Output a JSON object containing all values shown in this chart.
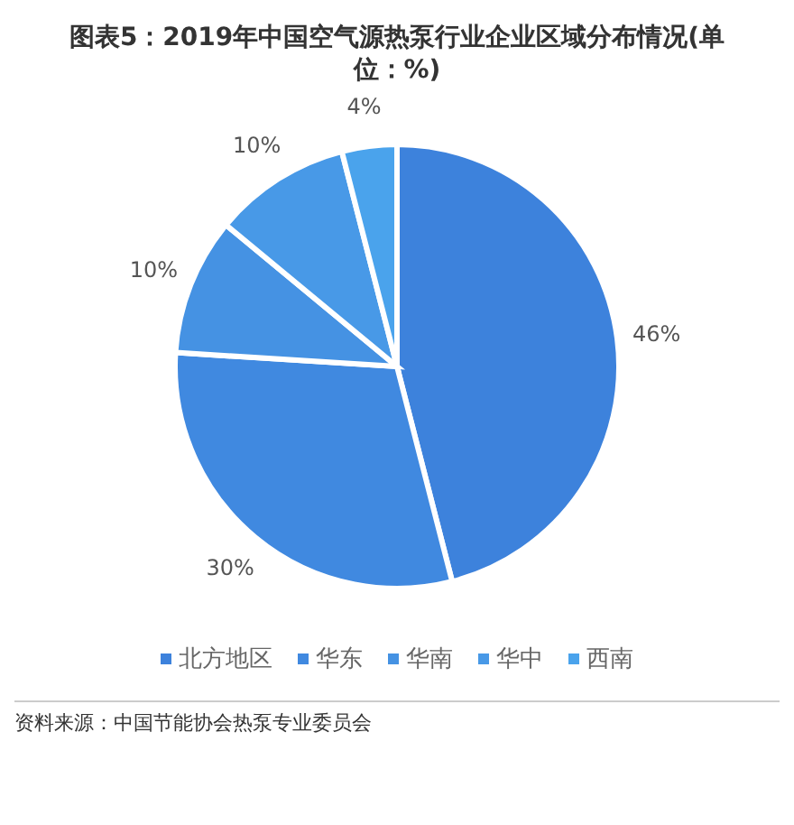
{
  "chart_data": {
    "type": "pie",
    "title": "图表5：2019年中国空气源热泵行业企业区域分布情况(单位：%)",
    "categories": [
      "北方地区",
      "华东",
      "华南",
      "华中",
      "西南"
    ],
    "values": [
      46,
      30,
      10,
      10,
      4
    ],
    "colors": [
      "#3d82dc",
      "#4089e0",
      "#4592e3",
      "#4899e7",
      "#4aa3ec"
    ],
    "value_labels": [
      "46%",
      "30%",
      "10%",
      "10%",
      "4%"
    ],
    "legend": "bottom",
    "annotations": [
      "资料来源：中国节能协会热泵专业委员会"
    ]
  }
}
